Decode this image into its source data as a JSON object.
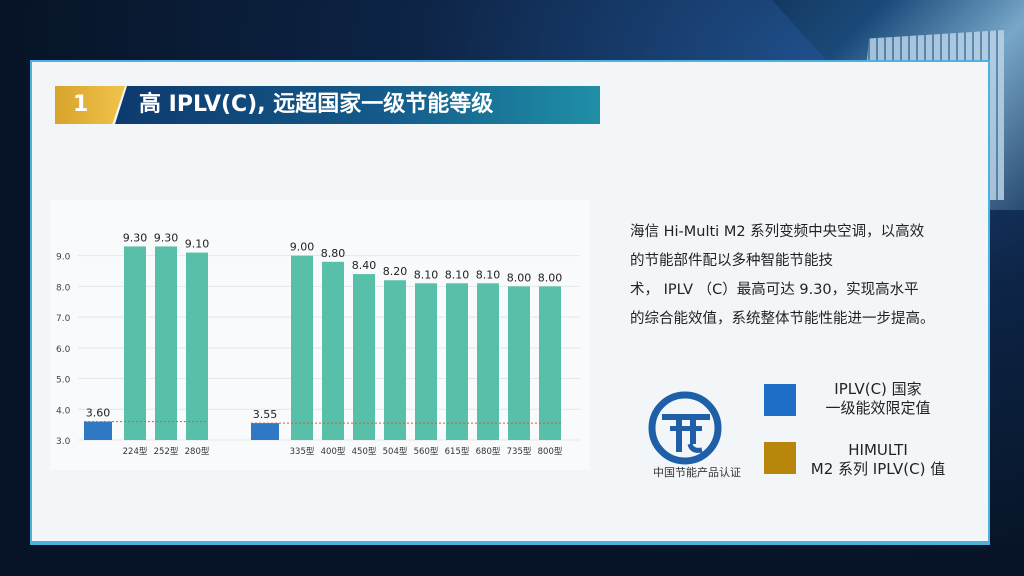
{
  "header": {
    "number": "1",
    "title": "高 IPLV(C), 远超国家一级节能等级"
  },
  "description": [
    "海信 Hi-Multi M2 系列变频中央空调，以高效",
    "的节能部件配以多种智能节能技",
    "术， IPLV （C）最高可达 9.30，实现高水平",
    "的综合能效值，系统整体节能性能进一步提高。"
  ],
  "logo": {
    "caption": "中国节能产品认证"
  },
  "legend": [
    {
      "lines": [
        "IPLV(C) 国家",
        "一级能效限定值"
      ],
      "color": "#1f6fc9"
    },
    {
      "lines": [
        "HIMULTI",
        "M2 系列 IPLV(C) 值"
      ],
      "color": "#b8860b"
    }
  ],
  "chart_data": {
    "type": "bar",
    "ylim": [
      3.0,
      9.9
    ],
    "yticks": [
      "3.0",
      "4.0",
      "5.0",
      "6.0",
      "7.0",
      "8.0",
      "9.0"
    ],
    "colors": {
      "national": "#2f79c4",
      "himulti": "#58c0a8",
      "threshold_line": "#e8552f"
    },
    "groups": [
      {
        "national": 3.6,
        "national_label": "3.60",
        "categories": [
          "224型",
          "252型",
          "280型"
        ],
        "values": [
          9.3,
          9.3,
          9.1
        ],
        "labels": [
          "9.30",
          "9.30",
          "9.10"
        ]
      },
      {
        "national": 3.55,
        "national_label": "3.55",
        "categories": [
          "335型",
          "400型",
          "450型",
          "504型",
          "560型",
          "615型",
          "680型",
          "735型",
          "800型"
        ],
        "values": [
          9.0,
          8.8,
          8.4,
          8.2,
          8.1,
          8.1,
          8.1,
          8.0,
          8.0
        ],
        "labels": [
          "9.00",
          "8.80",
          "8.40",
          "8.20",
          "8.10",
          "8.10",
          "8.10",
          "8.00",
          "8.00"
        ]
      }
    ]
  }
}
